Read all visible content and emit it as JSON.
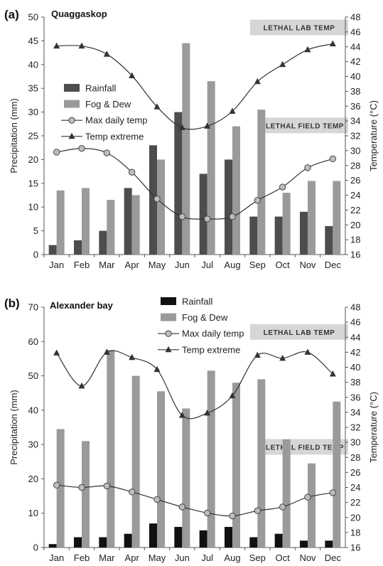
{
  "chart_data": [
    {
      "type": "bar",
      "panel_label": "(a)",
      "site": "Quaggaskop",
      "categories": [
        "Jan",
        "Feb",
        "Mar",
        "Apr",
        "May",
        "Jun",
        "Jul",
        "Aug",
        "Sep",
        "Oct",
        "Nov",
        "Dec"
      ],
      "ylabel": "Precipitation (mm)",
      "y2label": "Temperature (°C)",
      "ylim": [
        0,
        50
      ],
      "y2lim": [
        16,
        48
      ],
      "yticks": [
        0,
        5,
        10,
        15,
        20,
        25,
        30,
        35,
        40,
        45,
        50
      ],
      "y2ticks": [
        16,
        18,
        20,
        22,
        24,
        26,
        28,
        30,
        32,
        34,
        36,
        38,
        40,
        42,
        44,
        46,
        48
      ],
      "legend_position": "left",
      "series": [
        {
          "name": "Rainfall",
          "kind": "bar",
          "axis": "left",
          "color": "#4d4d4d",
          "values": [
            2,
            3,
            5,
            14,
            23,
            30,
            17,
            20,
            8,
            8,
            9,
            6
          ]
        },
        {
          "name": "Fog & Dew",
          "kind": "bar",
          "axis": "left",
          "color": "#9a9a9a",
          "values": [
            13.5,
            14,
            11.5,
            12.5,
            20,
            44.5,
            36.5,
            27,
            30.5,
            13,
            15.5,
            15.5
          ]
        },
        {
          "name": "Max daily temp",
          "kind": "line",
          "axis": "right",
          "marker": "circle",
          "color": "#555555",
          "values": [
            29.8,
            30.3,
            29.7,
            27.1,
            23.5,
            21.1,
            20.8,
            21.1,
            23.3,
            25.1,
            27.7,
            28.9
          ]
        },
        {
          "name": "Temp extreme",
          "kind": "line",
          "axis": "right",
          "marker": "triangle",
          "color": "#333333",
          "values": [
            44.1,
            44.1,
            43.0,
            40.1,
            35.9,
            33.1,
            33.3,
            35.3,
            39.3,
            41.6,
            43.6,
            44.4
          ]
        }
      ],
      "bands": [
        {
          "label": "LETHAL LAB TEMP",
          "value": 46.6
        },
        {
          "label": "LETHAL FIELD TEMP",
          "value": 33.4
        }
      ]
    },
    {
      "type": "bar",
      "panel_label": "(b)",
      "site": "Alexander bay",
      "categories": [
        "Jan",
        "Feb",
        "Mar",
        "Apr",
        "May",
        "Jun",
        "Jul",
        "Aug",
        "Sep",
        "Oct",
        "Nov",
        "Dec"
      ],
      "ylabel": "Precipitation (mm)",
      "y2label": "Temperature (°C)",
      "ylim": [
        0,
        70
      ],
      "y2lim": [
        16,
        48
      ],
      "yticks": [
        0,
        10,
        20,
        30,
        40,
        50,
        60,
        70
      ],
      "y2ticks": [
        16,
        18,
        20,
        22,
        24,
        26,
        28,
        30,
        32,
        34,
        36,
        38,
        40,
        42,
        44,
        46,
        48
      ],
      "legend_position": "top-right",
      "series": [
        {
          "name": "Rainfall",
          "kind": "bar",
          "axis": "left",
          "color": "#111111",
          "values": [
            1,
            3,
            3,
            4,
            7,
            6,
            5,
            6,
            3,
            4,
            2,
            2
          ]
        },
        {
          "name": "Fog & Dew",
          "kind": "bar",
          "axis": "left",
          "color": "#9a9a9a",
          "values": [
            34.5,
            31,
            57.5,
            50,
            45.5,
            40.5,
            51.5,
            48,
            49,
            31.5,
            24.5,
            42.5
          ]
        },
        {
          "name": "Max daily temp",
          "kind": "line",
          "axis": "right",
          "marker": "circle",
          "color": "#555555",
          "values": [
            24.3,
            24.0,
            24.2,
            23.4,
            22.4,
            21.4,
            20.6,
            20.2,
            20.9,
            21.4,
            22.7,
            23.3
          ]
        },
        {
          "name": "Temp extreme",
          "kind": "line",
          "axis": "right",
          "marker": "triangle",
          "color": "#333333",
          "values": [
            41.9,
            37.5,
            42.0,
            41.3,
            39.7,
            33.6,
            33.9,
            36.2,
            41.6,
            41.2,
            42.0,
            39.1
          ]
        }
      ],
      "bands": [
        {
          "label": "LETHAL LAB TEMP",
          "value": 44.7
        },
        {
          "label": "LETHAL FIELD TEMP",
          "value": 29.4
        }
      ]
    }
  ]
}
